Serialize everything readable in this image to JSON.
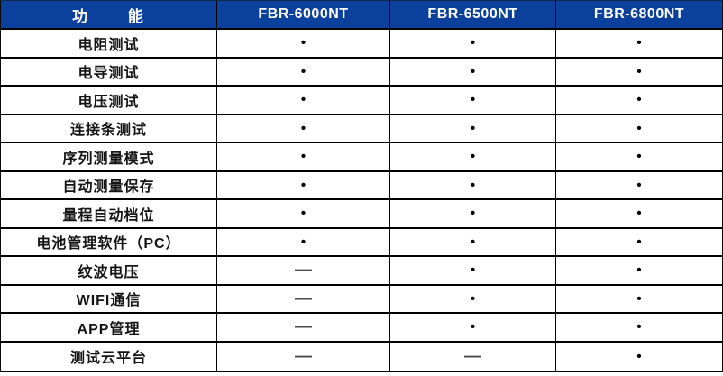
{
  "table": {
    "header": {
      "feature_col": "功 能",
      "products": [
        "FBR-6000NT",
        "FBR-6500NT",
        "FBR-6800NT"
      ]
    },
    "symbols": {
      "available": "•",
      "unavailable": "—"
    },
    "colors": {
      "header_bg": "#0B409C",
      "header_text": "#FFFFFF",
      "border": "#000000",
      "dot": "#000000",
      "dash": "#4A4A4A",
      "row_bg": "#FFFFFF"
    },
    "rows": [
      {
        "label": "电阻测试",
        "values": [
          "•",
          "•",
          "•"
        ]
      },
      {
        "label": "电导测试",
        "values": [
          "•",
          "•",
          "•"
        ]
      },
      {
        "label": "电压测试",
        "values": [
          "•",
          "•",
          "•"
        ]
      },
      {
        "label": "连接条测试",
        "values": [
          "•",
          "•",
          "•"
        ]
      },
      {
        "label": "序列测量模式",
        "values": [
          "•",
          "•",
          "•"
        ]
      },
      {
        "label": "自动测量保存",
        "values": [
          "•",
          "•",
          "•"
        ]
      },
      {
        "label": "量程自动档位",
        "values": [
          "•",
          "•",
          "•"
        ]
      },
      {
        "label": "电池管理软件（PC）",
        "values": [
          "•",
          "•",
          "•"
        ]
      },
      {
        "label": "纹波电压",
        "values": [
          "—",
          "•",
          "•"
        ]
      },
      {
        "label": "WIFI通信",
        "values": [
          "—",
          "•",
          "•"
        ]
      },
      {
        "label": "APP管理",
        "values": [
          "—",
          "•",
          "•"
        ]
      },
      {
        "label": "测试云平台",
        "values": [
          "—",
          "—",
          "•"
        ]
      }
    ]
  }
}
